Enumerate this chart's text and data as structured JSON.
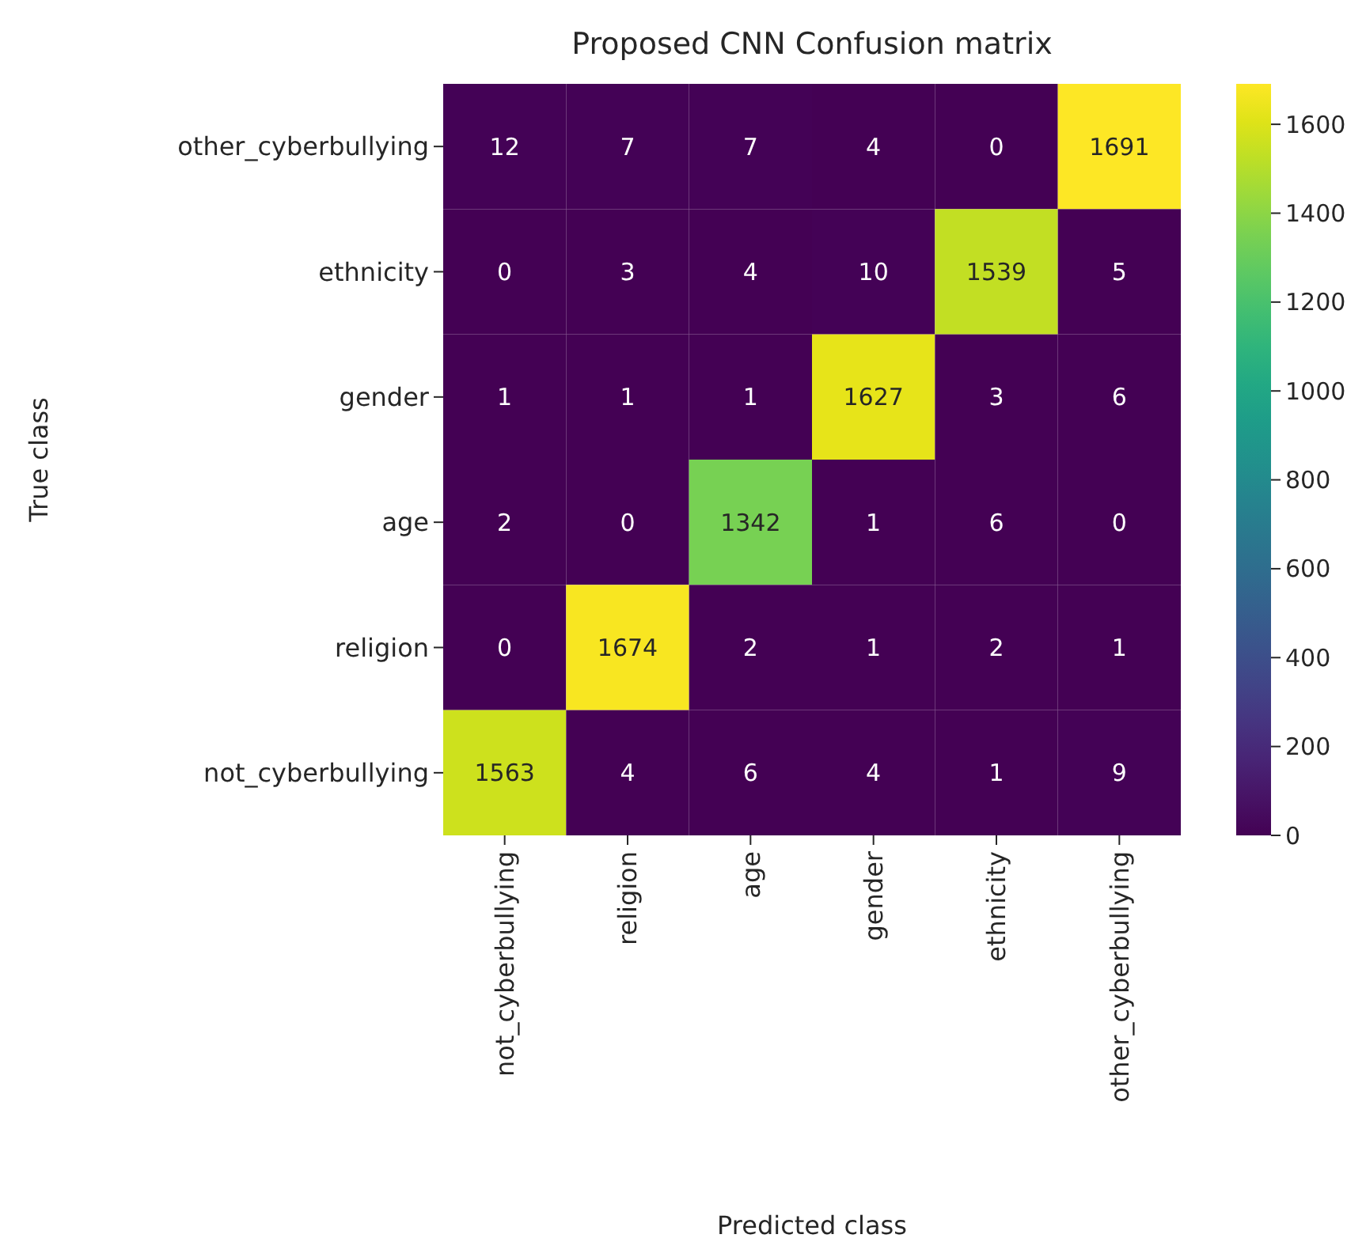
{
  "chart_data": {
    "type": "heatmap",
    "title": "Proposed CNN Confusion matrix",
    "xlabel": "Predicted class",
    "ylabel": "True class",
    "categories": [
      "not_cyberbullying",
      "religion",
      "age",
      "gender",
      "ethnicity",
      "other_cyberbullying"
    ],
    "y_categories": [
      "other_cyberbullying",
      "ethnicity",
      "gender",
      "age",
      "religion",
      "not_cyberbullying"
    ],
    "cells": [
      [
        12,
        7,
        7,
        4,
        0,
        1691
      ],
      [
        0,
        3,
        4,
        10,
        1539,
        5
      ],
      [
        1,
        1,
        1,
        1627,
        3,
        6
      ],
      [
        2,
        0,
        1342,
        1,
        6,
        0
      ],
      [
        0,
        1674,
        2,
        1,
        2,
        1
      ],
      [
        1563,
        4,
        6,
        4,
        1,
        9
      ]
    ],
    "data_labels": true,
    "clim": [
      0,
      1691
    ],
    "cticks": [
      0,
      200,
      400,
      600,
      800,
      1000,
      1200,
      1400,
      1600
    ]
  }
}
